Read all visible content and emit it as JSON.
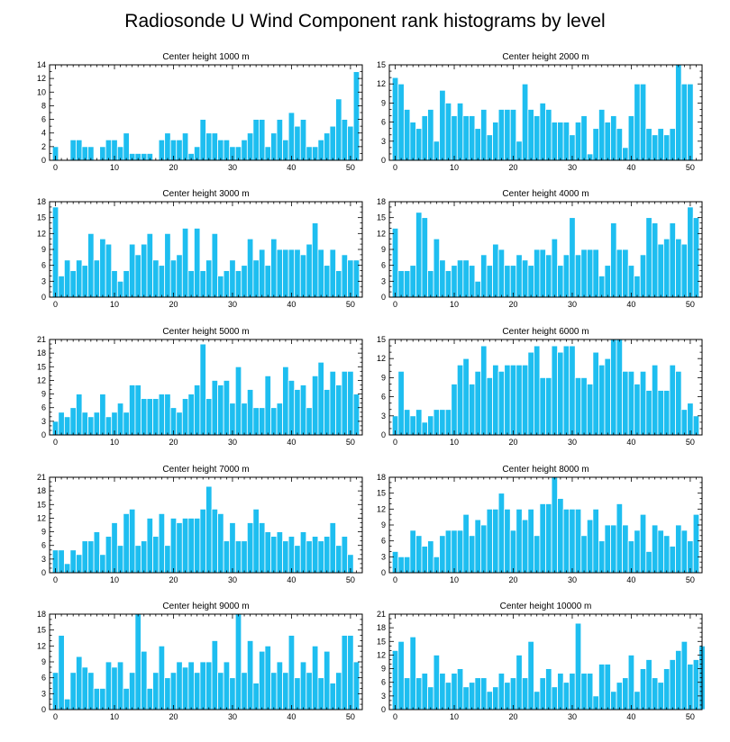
{
  "figure": {
    "title": "Radiosonde U Wind Component rank histograms by level",
    "bar_color": "#1EBEF0",
    "bar_edge_color": "#ffffff",
    "axis_color": "#000000"
  },
  "chart_data": [
    {
      "type": "bar",
      "title": "Center height 1000 m",
      "xlim": [
        -1,
        52
      ],
      "ylim": [
        0,
        14
      ],
      "xticks": [
        0,
        10,
        20,
        30,
        40,
        50
      ],
      "yticks": [
        0,
        2,
        4,
        6,
        8,
        10,
        12,
        14
      ],
      "values": [
        2,
        0,
        0,
        3,
        3,
        2,
        2,
        0,
        2,
        3,
        3,
        2,
        4,
        1,
        1,
        1,
        1,
        0,
        3,
        4,
        3,
        3,
        4,
        1,
        2,
        6,
        4,
        4,
        3,
        3,
        2,
        2,
        3,
        4,
        6,
        6,
        2,
        4,
        6,
        3,
        7,
        5,
        6,
        2,
        2,
        3,
        4,
        5,
        9,
        6,
        5,
        13
      ]
    },
    {
      "type": "bar",
      "title": "Center height 2000 m",
      "xlim": [
        -1,
        52
      ],
      "ylim": [
        0,
        15
      ],
      "xticks": [
        0,
        10,
        20,
        30,
        40,
        50
      ],
      "yticks": [
        0,
        3,
        6,
        9,
        12,
        15
      ],
      "values": [
        13,
        12,
        8,
        6,
        5,
        7,
        8,
        3,
        11,
        9,
        7,
        9,
        7,
        7,
        5,
        8,
        4,
        6,
        8,
        8,
        8,
        3,
        12,
        8,
        7,
        9,
        8,
        6,
        6,
        6,
        4,
        6,
        7,
        1,
        5,
        8,
        6,
        7,
        5,
        2,
        7,
        12,
        12,
        5,
        4,
        5,
        4,
        5,
        15,
        12,
        12,
        0
      ]
    },
    {
      "type": "bar",
      "title": "Center height 3000 m",
      "xlim": [
        -1,
        52
      ],
      "ylim": [
        0,
        18
      ],
      "xticks": [
        0,
        10,
        20,
        30,
        40,
        50
      ],
      "yticks": [
        0,
        3,
        6,
        9,
        12,
        15,
        18
      ],
      "values": [
        17,
        4,
        7,
        5,
        7,
        6,
        12,
        7,
        11,
        10,
        5,
        3,
        5,
        10,
        8,
        10,
        12,
        7,
        6,
        12,
        7,
        8,
        13,
        5,
        13,
        5,
        7,
        12,
        4,
        5,
        7,
        5,
        6,
        11,
        7,
        9,
        6,
        11,
        9,
        9,
        9,
        9,
        8,
        10,
        14,
        9,
        6,
        9,
        5,
        8,
        7,
        7
      ]
    },
    {
      "type": "bar",
      "title": "Center height 4000 m",
      "xlim": [
        -1,
        52
      ],
      "ylim": [
        0,
        18
      ],
      "xticks": [
        0,
        10,
        20,
        30,
        40,
        50
      ],
      "yticks": [
        0,
        3,
        6,
        9,
        12,
        15,
        18
      ],
      "values": [
        13,
        5,
        5,
        6,
        16,
        15,
        5,
        11,
        7,
        5,
        6,
        7,
        7,
        6,
        3,
        8,
        6,
        10,
        9,
        6,
        6,
        8,
        7,
        6,
        9,
        9,
        8,
        11,
        6,
        8,
        15,
        8,
        9,
        9,
        9,
        4,
        6,
        14,
        9,
        9,
        6,
        4,
        8,
        15,
        14,
        10,
        11,
        14,
        11,
        10,
        17,
        15
      ]
    },
    {
      "type": "bar",
      "title": "Center height 5000 m",
      "xlim": [
        -1,
        52
      ],
      "ylim": [
        0,
        21
      ],
      "xticks": [
        0,
        10,
        20,
        30,
        40,
        50
      ],
      "yticks": [
        0,
        3,
        6,
        9,
        12,
        15,
        18,
        21
      ],
      "values": [
        3,
        5,
        4,
        6,
        9,
        5,
        4,
        5,
        9,
        4,
        5,
        7,
        5,
        11,
        11,
        8,
        8,
        8,
        9,
        9,
        6,
        5,
        8,
        9,
        11,
        20,
        8,
        12,
        11,
        12,
        7,
        15,
        7,
        10,
        6,
        6,
        13,
        6,
        7,
        15,
        12,
        10,
        11,
        6,
        13,
        16,
        10,
        14,
        11,
        14,
        14,
        9
      ]
    },
    {
      "type": "bar",
      "title": "Center height 6000 m",
      "xlim": [
        -1,
        52
      ],
      "ylim": [
        0,
        15
      ],
      "xticks": [
        0,
        10,
        20,
        30,
        40,
        50
      ],
      "yticks": [
        0,
        3,
        6,
        9,
        12,
        15
      ],
      "values": [
        3,
        10,
        4,
        3,
        4,
        2,
        3,
        4,
        4,
        4,
        8,
        11,
        12,
        8,
        10,
        14,
        9,
        11,
        10,
        11,
        11,
        11,
        11,
        13,
        14,
        9,
        9,
        14,
        13,
        14,
        14,
        9,
        9,
        8,
        13,
        11,
        12,
        15,
        15,
        10,
        10,
        8,
        10,
        7,
        11,
        7,
        7,
        11,
        10,
        4,
        5,
        3
      ]
    },
    {
      "type": "bar",
      "title": "Center height 7000 m",
      "xlim": [
        -1,
        52
      ],
      "ylim": [
        0,
        21
      ],
      "xticks": [
        0,
        10,
        20,
        30,
        40,
        50
      ],
      "yticks": [
        0,
        3,
        6,
        9,
        12,
        15,
        18,
        21
      ],
      "values": [
        5,
        5,
        2,
        5,
        4,
        7,
        7,
        9,
        4,
        8,
        11,
        6,
        13,
        14,
        6,
        7,
        12,
        8,
        13,
        6,
        12,
        11,
        12,
        12,
        12,
        14,
        19,
        14,
        13,
        7,
        11,
        7,
        7,
        11,
        14,
        11,
        9,
        8,
        9,
        7,
        8,
        6,
        9,
        7,
        8,
        7,
        8,
        11,
        6,
        8,
        4,
        0
      ]
    },
    {
      "type": "bar",
      "title": "Center height 8000 m",
      "xlim": [
        -1,
        52
      ],
      "ylim": [
        0,
        18
      ],
      "xticks": [
        0,
        10,
        20,
        30,
        40,
        50
      ],
      "yticks": [
        0,
        3,
        6,
        9,
        12,
        15,
        18
      ],
      "values": [
        4,
        3,
        3,
        8,
        7,
        5,
        6,
        3,
        7,
        8,
        8,
        8,
        11,
        7,
        10,
        9,
        12,
        12,
        15,
        12,
        8,
        12,
        10,
        12,
        7,
        13,
        13,
        18,
        14,
        12,
        12,
        12,
        7,
        10,
        12,
        6,
        9,
        9,
        13,
        9,
        6,
        8,
        11,
        4,
        9,
        8,
        7,
        5,
        9,
        8,
        6,
        11
      ]
    },
    {
      "type": "bar",
      "title": "Center height 9000 m",
      "xlim": [
        -1,
        52
      ],
      "ylim": [
        0,
        18
      ],
      "xticks": [
        0,
        10,
        20,
        30,
        40,
        50
      ],
      "yticks": [
        0,
        3,
        6,
        9,
        12,
        15,
        18
      ],
      "values": [
        7,
        14,
        2,
        7,
        10,
        8,
        7,
        4,
        4,
        9,
        8,
        9,
        4,
        7,
        18,
        11,
        4,
        7,
        12,
        6,
        7,
        9,
        8,
        9,
        7,
        9,
        9,
        13,
        7,
        9,
        6,
        18,
        7,
        13,
        5,
        11,
        12,
        7,
        9,
        7,
        14,
        6,
        9,
        7,
        12,
        6,
        11,
        5,
        7,
        14,
        14,
        9
      ]
    },
    {
      "type": "bar",
      "title": "Center height 10000 m",
      "xlim": [
        -1,
        52
      ],
      "ylim": [
        0,
        21
      ],
      "xticks": [
        0,
        10,
        20,
        30,
        40,
        50
      ],
      "yticks": [
        0,
        3,
        6,
        9,
        12,
        15,
        18,
        21
      ],
      "values": [
        13,
        15,
        7,
        16,
        7,
        8,
        5,
        12,
        8,
        6,
        8,
        9,
        5,
        6,
        7,
        7,
        4,
        5,
        8,
        6,
        7,
        12,
        7,
        15,
        4,
        7,
        9,
        5,
        8,
        6,
        8,
        19,
        8,
        8,
        3,
        10,
        10,
        4,
        6,
        7,
        12,
        4,
        9,
        11,
        7,
        6,
        9,
        11,
        13,
        15,
        10,
        11,
        14
      ]
    }
  ]
}
